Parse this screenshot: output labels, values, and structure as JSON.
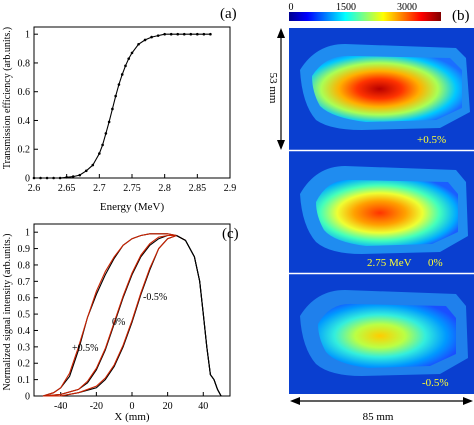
{
  "chart_data": [
    {
      "panel_label": "(a)",
      "type": "line",
      "xlabel": "Energy (MeV)",
      "ylabel": "Transmission efficiency (arb.units.)",
      "xlim": [
        2.6,
        2.9
      ],
      "ylim": [
        0,
        1.05
      ],
      "xticks": [
        "2.6",
        "2.65",
        "2.7",
        "2.75",
        "2.8",
        "2.85",
        "2.9"
      ],
      "yticks": [
        "0",
        "0.2",
        "0.4",
        "0.6",
        "0.8",
        "1"
      ],
      "grid": false,
      "series": [
        {
          "x": [
            2.6,
            2.61,
            2.62,
            2.63,
            2.64,
            2.65,
            2.66,
            2.67,
            2.68,
            2.69,
            2.7,
            2.705,
            2.71,
            2.715,
            2.72,
            2.725,
            2.73,
            2.735,
            2.74,
            2.745,
            2.75,
            2.76,
            2.77,
            2.78,
            2.79,
            2.8,
            2.81,
            2.82,
            2.83,
            2.84,
            2.85,
            2.86,
            2.87
          ],
          "y": [
            0.0,
            0.0,
            0.0,
            0.0,
            0.0,
            0.005,
            0.01,
            0.02,
            0.05,
            0.09,
            0.17,
            0.23,
            0.31,
            0.39,
            0.48,
            0.57,
            0.65,
            0.72,
            0.78,
            0.83,
            0.87,
            0.93,
            0.96,
            0.98,
            0.99,
            1.0,
            1.0,
            1.0,
            1.0,
            1.0,
            1.0,
            1.0,
            1.0
          ]
        }
      ]
    },
    {
      "panel_label": "(b)",
      "type": "heatmap",
      "colorbar_ticks": [
        "0",
        "1500",
        "3000"
      ],
      "colorbar_range": [
        0,
        3000
      ],
      "height_label": "53 mm",
      "width_label": "85 mm",
      "images": [
        {
          "annotation": "+0.5%",
          "peak": 3000
        },
        {
          "energy_label": "2.75 MeV",
          "annotation": "0%",
          "peak": 2500
        },
        {
          "annotation": "-0.5%",
          "peak": 1800
        }
      ]
    },
    {
      "panel_label": "(c)",
      "type": "line",
      "xlabel": "X (mm)",
      "ylabel": "Normalized signal intensity (arb.units.)",
      "xlim": [
        -55,
        55
      ],
      "ylim": [
        0,
        1.05
      ],
      "xticks": [
        "-40",
        "-20",
        "0",
        "20",
        "40"
      ],
      "yticks": [
        "0",
        "0.1",
        "0.2",
        "0.3",
        "0.4",
        "0.5",
        "0.6",
        "0.7",
        "0.8",
        "0.9",
        "1"
      ],
      "annotations": [
        "+0.5%",
        "0%",
        "-0.5%"
      ],
      "grid": false,
      "series": [
        {
          "color": "#000000",
          "x": [
            -50,
            -44,
            -40,
            -35,
            -30,
            -25,
            -20,
            -15,
            -10,
            -5,
            0,
            5,
            10,
            15,
            20,
            25,
            30,
            35,
            38,
            40,
            42,
            44,
            46,
            48,
            50
          ],
          "y": [
            0.0,
            0.02,
            0.05,
            0.12,
            0.28,
            0.48,
            0.62,
            0.74,
            0.84,
            0.92,
            0.96,
            0.98,
            0.99,
            0.99,
            0.99,
            0.98,
            0.95,
            0.85,
            0.7,
            0.5,
            0.3,
            0.13,
            0.1,
            0.04,
            0.0
          ]
        },
        {
          "color": "#cc2200",
          "x": [
            -50,
            -44,
            -40,
            -35,
            -30,
            -25,
            -20,
            -15,
            -10,
            -5,
            0,
            5,
            10,
            15,
            20,
            25,
            30
          ],
          "y": [
            0.0,
            0.02,
            0.05,
            0.14,
            0.3,
            0.48,
            0.64,
            0.76,
            0.85,
            0.92,
            0.96,
            0.98,
            0.99,
            0.99,
            0.99,
            0.98,
            0.95
          ]
        },
        {
          "color": "#000000",
          "x": [
            -50,
            -40,
            -30,
            -25,
            -20,
            -15,
            -10,
            -5,
            0,
            5,
            10,
            15,
            20,
            25,
            30,
            35,
            38,
            40,
            42,
            44,
            46,
            48,
            50
          ],
          "y": [
            0.0,
            0.01,
            0.04,
            0.08,
            0.16,
            0.28,
            0.44,
            0.6,
            0.74,
            0.85,
            0.92,
            0.96,
            0.98,
            0.98,
            0.95,
            0.85,
            0.7,
            0.5,
            0.3,
            0.13,
            0.1,
            0.04,
            0.0
          ]
        },
        {
          "color": "#cc2200",
          "x": [
            -50,
            -40,
            -30,
            -25,
            -20,
            -15,
            -10,
            -5,
            0,
            5,
            10,
            15,
            20,
            25
          ],
          "y": [
            0.0,
            0.01,
            0.04,
            0.09,
            0.17,
            0.29,
            0.45,
            0.61,
            0.75,
            0.86,
            0.93,
            0.97,
            0.98,
            0.98
          ]
        },
        {
          "color": "#000000",
          "x": [
            -50,
            -40,
            -30,
            -20,
            -15,
            -10,
            -5,
            0,
            5,
            10,
            15,
            20,
            25,
            30,
            35,
            38,
            40,
            42,
            44,
            46,
            48,
            50
          ],
          "y": [
            0.0,
            0.0,
            0.02,
            0.05,
            0.1,
            0.18,
            0.3,
            0.45,
            0.62,
            0.77,
            0.9,
            0.96,
            0.98,
            0.95,
            0.85,
            0.7,
            0.5,
            0.3,
            0.13,
            0.1,
            0.04,
            0.0
          ]
        },
        {
          "color": "#cc2200",
          "x": [
            -50,
            -40,
            -30,
            -20,
            -15,
            -10,
            -5,
            0,
            5,
            10,
            15,
            20,
            25
          ],
          "y": [
            0.0,
            0.0,
            0.02,
            0.06,
            0.11,
            0.19,
            0.31,
            0.46,
            0.63,
            0.78,
            0.9,
            0.96,
            0.98
          ]
        }
      ]
    }
  ]
}
